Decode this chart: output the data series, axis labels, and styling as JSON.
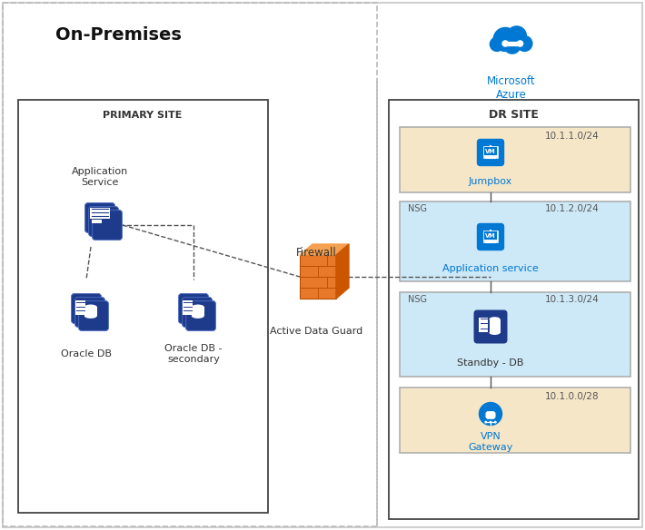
{
  "title_onprem": "On-Premises",
  "title_drsite": "DR SITE",
  "title_primarysite": "PRIMARY SITE",
  "title_azure": "Microsoft\nAzure",
  "bg_color": "#ffffff",
  "node_blue_dark": "#1e3a8a",
  "azure_blue": "#0078d4",
  "subnet_beige": "#f5e6c8",
  "subnet_blue_light": "#cde8f7",
  "firewall_orange": "#e8782a",
  "jumpbox_subnet": "10.1.1.0/24",
  "app_subnet": "10.1.2.0/24",
  "db_subnet": "10.1.3.0/24",
  "vpn_subnet": "10.1.0.0/28",
  "jumpbox_label": "Jumpbox",
  "app_service_label": "Application service",
  "standby_db_label": "Standby - DB",
  "vpn_gateway_label": "VPN\nGateway",
  "firewall_label": "Firewall",
  "active_data_guard_label": "Active Data Guard",
  "oracle_db_label": "Oracle DB",
  "oracle_db_sec_label": "Oracle DB -\nsecondary",
  "app_service_onprem_label": "Application\nService"
}
